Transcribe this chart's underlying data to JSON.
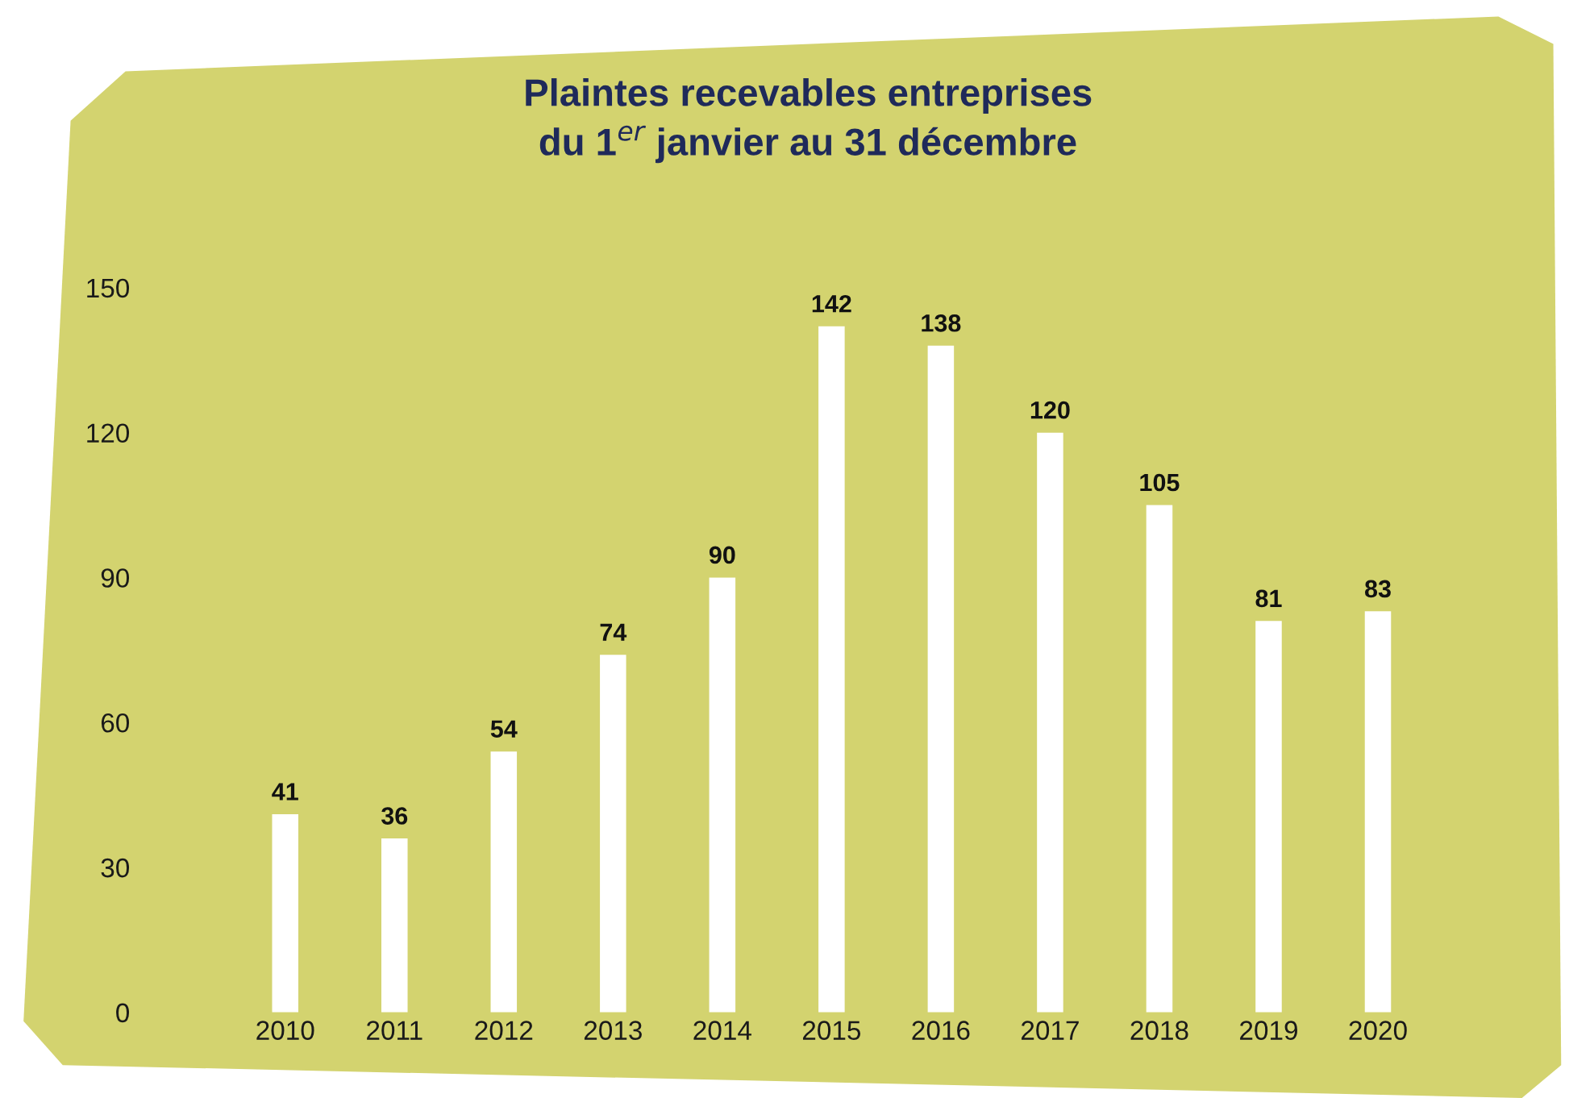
{
  "chart_data": {
    "type": "bar",
    "title": "Plaintes recevables entreprises\ndu 1$^{er}$ janvier au 31 décembre",
    "categories": [
      "2010",
      "2011",
      "2012",
      "2013",
      "2014",
      "2015",
      "2016",
      "2017",
      "2018",
      "2019",
      "2020"
    ],
    "values": [
      41,
      36,
      54,
      74,
      90,
      142,
      138,
      120,
      105,
      81,
      83
    ],
    "color": "#ffffff",
    "ylim": [
      0,
      150
    ],
    "yticks": [
      0,
      30,
      60,
      90,
      120,
      150
    ],
    "data_labels": true,
    "grid": false,
    "legend": false
  }
}
